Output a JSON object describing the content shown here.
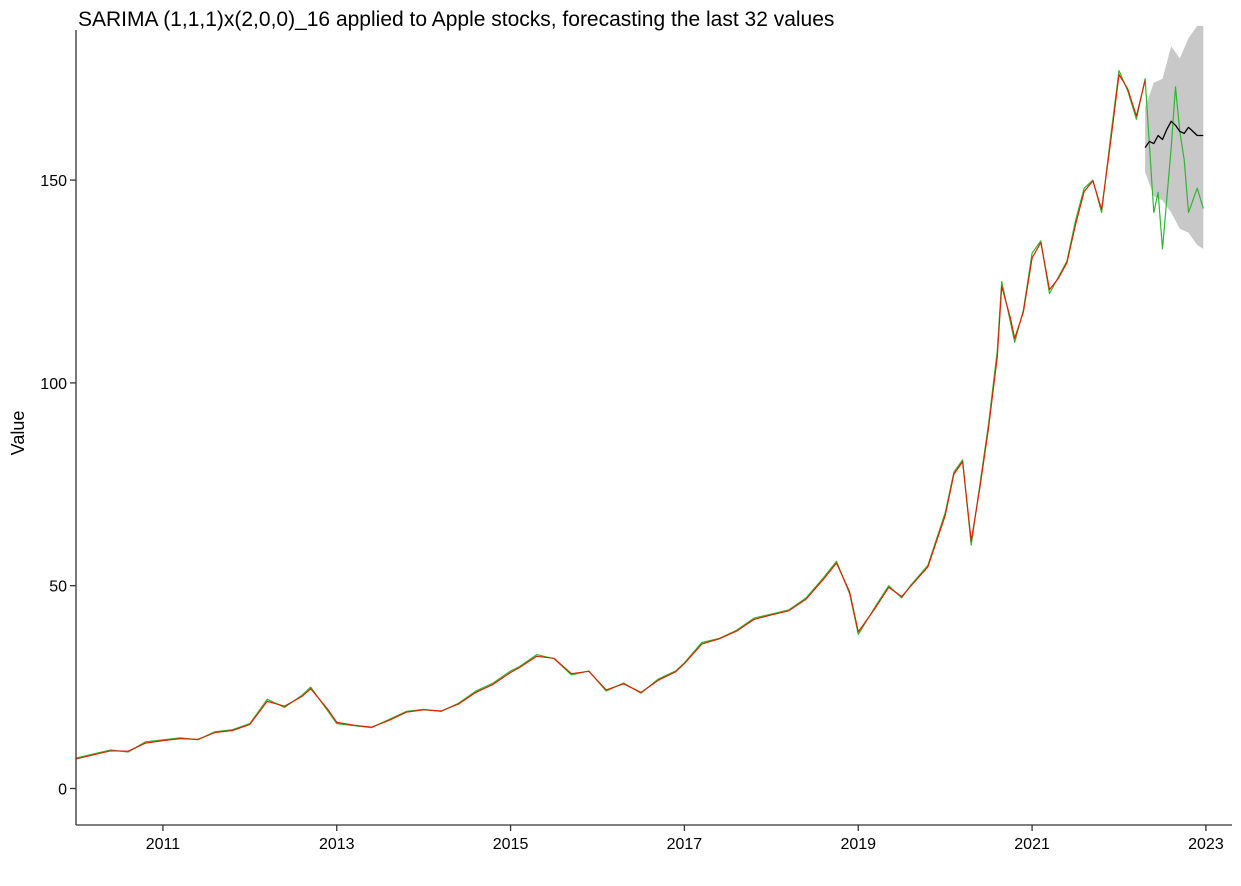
{
  "chart_data": {
    "type": "line",
    "title": "SARIMA (1,1,1)x(2,0,0)_16 applied to Apple stocks, forecasting the last 32 values",
    "xlabel": "",
    "ylabel": "Value",
    "xlim": [
      2010.0,
      2023.3
    ],
    "ylim": [
      -9,
      187
    ],
    "x_ticks": [
      2011,
      2013,
      2015,
      2017,
      2019,
      2021,
      2023
    ],
    "x_tick_labels": [
      "2011",
      "2013",
      "2015",
      "2017",
      "2019",
      "2021",
      "2023"
    ],
    "y_ticks": [
      0,
      50,
      100,
      150
    ],
    "y_tick_labels": [
      "0",
      "50",
      "100",
      "150"
    ],
    "grid": false,
    "legend": "none",
    "colors": {
      "actual": "#2db82d",
      "fitted": "#dd2200",
      "forecast": "#000000",
      "interval": "#c8c8c8"
    },
    "series": [
      {
        "color": "#2db82d",
        "role": "actual",
        "x": [
          2010.0,
          2010.2,
          2010.4,
          2010.6,
          2010.8,
          2011.0,
          2011.2,
          2011.4,
          2011.6,
          2011.8,
          2012.0,
          2012.2,
          2012.4,
          2012.6,
          2012.7,
          2012.9,
          2013.0,
          2013.2,
          2013.4,
          2013.6,
          2013.8,
          2014.0,
          2014.2,
          2014.4,
          2014.6,
          2014.8,
          2015.0,
          2015.1,
          2015.3,
          2015.5,
          2015.7,
          2015.9,
          2016.1,
          2016.3,
          2016.5,
          2016.7,
          2016.9,
          2017.0,
          2017.2,
          2017.4,
          2017.6,
          2017.8,
          2018.0,
          2018.2,
          2018.4,
          2018.6,
          2018.75,
          2018.9,
          2019.0,
          2019.2,
          2019.35,
          2019.5,
          2019.6,
          2019.8,
          2020.0,
          2020.1,
          2020.2,
          2020.3,
          2020.4,
          2020.5,
          2020.6,
          2020.65,
          2020.75,
          2020.8,
          2020.9,
          2021.0,
          2021.1,
          2021.2,
          2021.3,
          2021.4,
          2021.5,
          2021.6,
          2021.7,
          2021.8,
          2021.9,
          2022.0,
          2022.1,
          2022.2,
          2022.3,
          2022.4,
          2022.45,
          2022.5,
          2022.6,
          2022.65,
          2022.7,
          2022.75,
          2022.8,
          2022.9,
          2022.97
        ],
        "y": [
          7.5,
          8.5,
          9.5,
          9.0,
          11.5,
          12.0,
          12.5,
          12.0,
          14.0,
          14.5,
          16.0,
          22.0,
          20.0,
          23.0,
          25.0,
          19.0,
          16.0,
          15.5,
          15.0,
          17.0,
          19.0,
          19.5,
          19.0,
          21.0,
          24.0,
          26.0,
          29.0,
          30.0,
          33.0,
          32.0,
          28.0,
          29.0,
          24.0,
          26.0,
          23.5,
          27.0,
          29.0,
          31.0,
          36.0,
          37.0,
          39.0,
          42.0,
          43.0,
          44.0,
          47.0,
          52.0,
          56.0,
          48.0,
          38.0,
          45.0,
          50.0,
          47.0,
          50.0,
          55.0,
          68.0,
          78.0,
          81.0,
          60.0,
          75.0,
          90.0,
          108.0,
          125.0,
          115.0,
          110.0,
          118.0,
          132.0,
          135.0,
          122.0,
          126.0,
          130.0,
          140.0,
          148.0,
          150.0,
          142.0,
          160.0,
          177.0,
          172.0,
          165.0,
          175.0,
          142.0,
          147.0,
          133.0,
          158.0,
          173.0,
          162.0,
          155.0,
          142.0,
          148.0,
          143.0
        ]
      },
      {
        "color": "#dd2200",
        "role": "fitted",
        "x": [
          2010.0,
          2010.2,
          2010.4,
          2010.6,
          2010.8,
          2011.0,
          2011.2,
          2011.4,
          2011.6,
          2011.8,
          2012.0,
          2012.2,
          2012.4,
          2012.6,
          2012.7,
          2012.9,
          2013.0,
          2013.2,
          2013.4,
          2013.6,
          2013.8,
          2014.0,
          2014.2,
          2014.4,
          2014.6,
          2014.8,
          2015.0,
          2015.1,
          2015.3,
          2015.5,
          2015.7,
          2015.9,
          2016.1,
          2016.3,
          2016.5,
          2016.7,
          2016.9,
          2017.0,
          2017.2,
          2017.4,
          2017.6,
          2017.8,
          2018.0,
          2018.2,
          2018.4,
          2018.6,
          2018.75,
          2018.9,
          2019.0,
          2019.2,
          2019.35,
          2019.5,
          2019.6,
          2019.8,
          2020.0,
          2020.1,
          2020.2,
          2020.3,
          2020.4,
          2020.5,
          2020.6,
          2020.65,
          2020.75,
          2020.8,
          2020.9,
          2021.0,
          2021.1,
          2021.2,
          2021.3,
          2021.4,
          2021.5,
          2021.6,
          2021.7,
          2021.8,
          2021.9,
          2022.0,
          2022.1,
          2022.2,
          2022.3
        ],
        "y": [
          7.3,
          8.3,
          9.3,
          9.2,
          11.2,
          11.8,
          12.3,
          12.1,
          13.8,
          14.3,
          15.8,
          21.5,
          20.3,
          22.7,
          24.6,
          19.4,
          16.3,
          15.6,
          15.1,
          16.8,
          18.8,
          19.4,
          19.1,
          20.8,
          23.7,
          25.7,
          28.6,
          29.8,
          32.6,
          32.1,
          28.3,
          28.9,
          24.3,
          25.8,
          23.7,
          26.7,
          28.8,
          30.8,
          35.6,
          36.9,
          38.8,
          41.7,
          42.8,
          43.8,
          46.7,
          51.6,
          55.6,
          48.5,
          38.6,
          44.6,
          49.6,
          47.3,
          49.8,
          54.6,
          67.3,
          77.5,
          80.6,
          61.0,
          74.2,
          89.0,
          106.5,
          123.8,
          116.0,
          111.0,
          117.5,
          130.8,
          134.6,
          123.0,
          125.7,
          129.6,
          139.0,
          147.2,
          149.8,
          142.8,
          158.8,
          176.0,
          172.5,
          165.8,
          174.5
        ]
      },
      {
        "color": "#000000",
        "role": "forecast",
        "x": [
          2022.3,
          2022.35,
          2022.4,
          2022.45,
          2022.5,
          2022.55,
          2022.6,
          2022.65,
          2022.7,
          2022.75,
          2022.8,
          2022.85,
          2022.9,
          2022.97
        ],
        "y": [
          158.0,
          159.5,
          159.0,
          161.0,
          160.0,
          162.5,
          164.5,
          163.5,
          162.0,
          161.5,
          163.0,
          162.0,
          161.0,
          161.0
        ]
      }
    ],
    "interval": {
      "x": [
        2022.3,
        2022.4,
        2022.5,
        2022.6,
        2022.7,
        2022.8,
        2022.9,
        2022.97
      ],
      "upper": [
        168,
        174,
        175,
        183,
        180,
        185,
        188,
        188
      ],
      "lower": [
        152,
        146,
        145,
        142,
        138,
        137,
        134,
        133
      ]
    }
  }
}
